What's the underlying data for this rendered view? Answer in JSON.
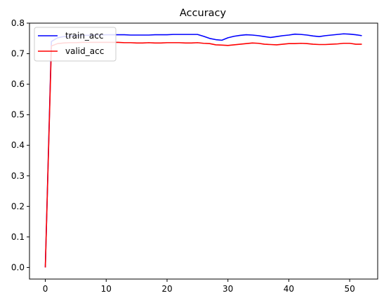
{
  "chart_data": {
    "type": "line",
    "title": "Accuracy",
    "xlabel": "",
    "ylabel": "",
    "xlim": [
      -2.6,
      54.6
    ],
    "ylim": [
      -0.038,
      0.8
    ],
    "xticks": [
      0,
      10,
      20,
      30,
      40,
      50
    ],
    "yticks": [
      0.0,
      0.1,
      0.2,
      0.3,
      0.4,
      0.5,
      0.6,
      0.7,
      0.8
    ],
    "ytick_labels": [
      "0.0",
      "0.1",
      "0.2",
      "0.3",
      "0.4",
      "0.5",
      "0.6",
      "0.7",
      "0.8"
    ],
    "xtick_labels": [
      "0",
      "10",
      "20",
      "30",
      "40",
      "50"
    ],
    "grid": false,
    "legend_position": "top-left",
    "series": [
      {
        "name": "train_acc",
        "color": "#0000ff",
        "x": [
          0,
          1,
          2,
          3,
          4,
          5,
          6,
          7,
          8,
          9,
          10,
          11,
          12,
          13,
          14,
          15,
          16,
          17,
          18,
          19,
          20,
          21,
          22,
          23,
          24,
          25,
          26,
          27,
          28,
          29,
          30,
          31,
          32,
          33,
          34,
          35,
          36,
          37,
          38,
          39,
          40,
          41,
          42,
          43,
          44,
          45,
          46,
          47,
          48,
          49,
          50,
          51,
          52
        ],
        "y": [
          0.0,
          0.74,
          0.752,
          0.756,
          0.758,
          0.759,
          0.76,
          0.76,
          0.761,
          0.761,
          0.762,
          0.762,
          0.762,
          0.762,
          0.761,
          0.761,
          0.761,
          0.761,
          0.762,
          0.762,
          0.762,
          0.763,
          0.763,
          0.763,
          0.763,
          0.763,
          0.757,
          0.75,
          0.746,
          0.744,
          0.752,
          0.757,
          0.76,
          0.762,
          0.761,
          0.759,
          0.756,
          0.753,
          0.756,
          0.759,
          0.761,
          0.764,
          0.763,
          0.761,
          0.758,
          0.756,
          0.759,
          0.761,
          0.763,
          0.765,
          0.764,
          0.762,
          0.759
        ]
      },
      {
        "name": "valid_acc",
        "color": "#ff0000",
        "x": [
          0,
          1,
          2,
          3,
          4,
          5,
          6,
          7,
          8,
          9,
          10,
          11,
          12,
          13,
          14,
          15,
          16,
          17,
          18,
          19,
          20,
          21,
          22,
          23,
          24,
          25,
          26,
          27,
          28,
          29,
          30,
          31,
          32,
          33,
          34,
          35,
          36,
          37,
          38,
          39,
          40,
          41,
          42,
          43,
          44,
          45,
          46,
          47,
          48,
          49,
          50,
          51,
          52
        ],
        "y": [
          0.0,
          0.725,
          0.733,
          0.735,
          0.736,
          0.736,
          0.737,
          0.737,
          0.737,
          0.737,
          0.737,
          0.737,
          0.737,
          0.736,
          0.736,
          0.735,
          0.735,
          0.736,
          0.735,
          0.735,
          0.736,
          0.736,
          0.736,
          0.735,
          0.735,
          0.736,
          0.734,
          0.733,
          0.729,
          0.728,
          0.727,
          0.729,
          0.731,
          0.733,
          0.735,
          0.734,
          0.731,
          0.73,
          0.729,
          0.731,
          0.733,
          0.733,
          0.734,
          0.733,
          0.731,
          0.73,
          0.73,
          0.731,
          0.732,
          0.734,
          0.734,
          0.731,
          0.731
        ]
      }
    ]
  }
}
